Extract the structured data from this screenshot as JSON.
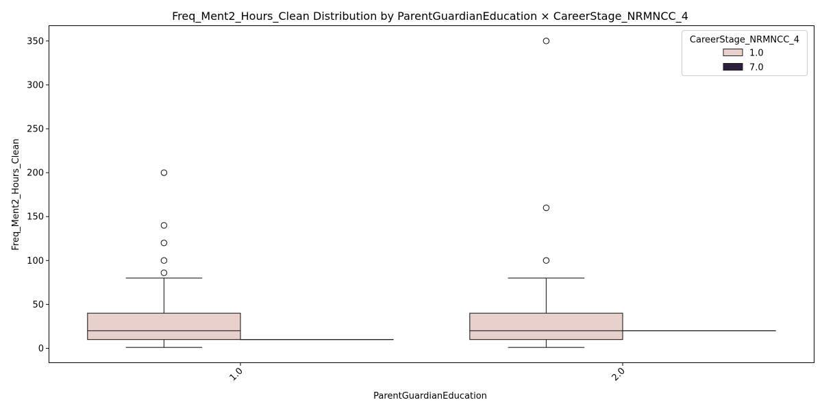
{
  "chart_data": {
    "type": "box",
    "title": "Freq_Ment2_Hours_Clean Distribution by ParentGuardianEducation × CareerStage_NRMNCC_4",
    "xlabel": "ParentGuardianEducation",
    "ylabel": "Freq_Ment2_Hours_Clean",
    "categories": [
      "1.0",
      "2.0"
    ],
    "ylim": [
      -16,
      367
    ],
    "yticks": [
      0,
      50,
      100,
      150,
      200,
      250,
      300,
      350
    ],
    "ytick_labels": [
      "0",
      "50",
      "100",
      "150",
      "200",
      "250",
      "300",
      "350"
    ],
    "legend": {
      "title": "CareerStage_NRMNCC_4",
      "position": "top-right"
    },
    "series": [
      {
        "name": "1.0",
        "color": "#e8d1cd",
        "boxes": [
          {
            "category": "1.0",
            "whisker_low": 1,
            "q1": 10,
            "median": 20,
            "q3": 40,
            "whisker_high": 80,
            "outliers": [
              86,
              100,
              120,
              140,
              200
            ]
          },
          {
            "category": "2.0",
            "whisker_low": 1,
            "q1": 10,
            "median": 20,
            "q3": 40,
            "whisker_high": 80,
            "outliers": [
              100,
              160,
              350
            ]
          }
        ]
      },
      {
        "name": "7.0",
        "color": "#2d1e3e",
        "boxes": [
          {
            "category": "1.0",
            "whisker_low": 10,
            "q1": 10,
            "median": 10,
            "q3": 10,
            "whisker_high": 10,
            "outliers": []
          },
          {
            "category": "2.0",
            "whisker_low": 20,
            "q1": 20,
            "median": 20,
            "q3": 20,
            "whisker_high": 20,
            "outliers": []
          }
        ]
      }
    ]
  }
}
